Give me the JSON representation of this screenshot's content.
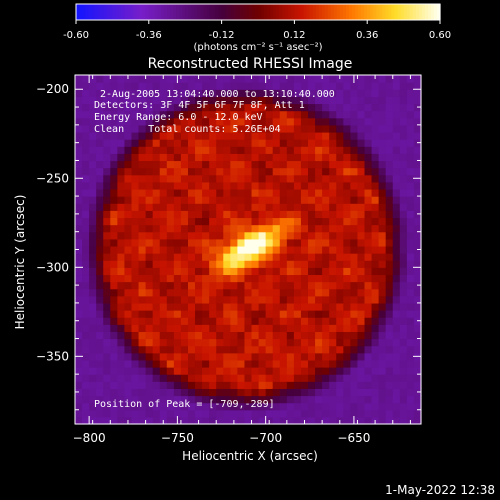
{
  "chart_data": {
    "type": "heatmap",
    "title": "Reconstructed RHESSI Image",
    "xlabel": "Heliocentric X (arcsec)",
    "ylabel": "Heliocentric Y (arcsec)",
    "xlim": [
      -808,
      -612
    ],
    "ylim": [
      -388,
      -192
    ],
    "xticks": [
      -800,
      -750,
      -700,
      -650
    ],
    "yticks": [
      -200,
      -250,
      -300,
      -350
    ],
    "colorbar": {
      "label": "(photons cm⁻² s⁻¹ asec⁻²)",
      "range": [
        -0.6,
        0.6
      ],
      "ticks": [
        "-0.60",
        "-0.36",
        "-0.12",
        "0.12",
        "0.36",
        "0.60"
      ],
      "colormap": "blue-purple-red-yellow-white"
    },
    "annotations": [
      "2-Aug-2005 13:04:40.000 to 13:10:40.000",
      "Detectors: 3F 4F 5F 6F 7F 8F, Att 1",
      "Energy Range: 6.0 - 12.0 keV",
      "Clean    Total counts: 5.26E+04",
      "Position of Peak = [-709,-289]"
    ],
    "source": {
      "peak_x": -709,
      "peak_y": -289,
      "peak_value": 0.6,
      "background_level": 0.12
    },
    "grid": false
  },
  "footer": {
    "timestamp": "1-May-2022 12:38"
  }
}
